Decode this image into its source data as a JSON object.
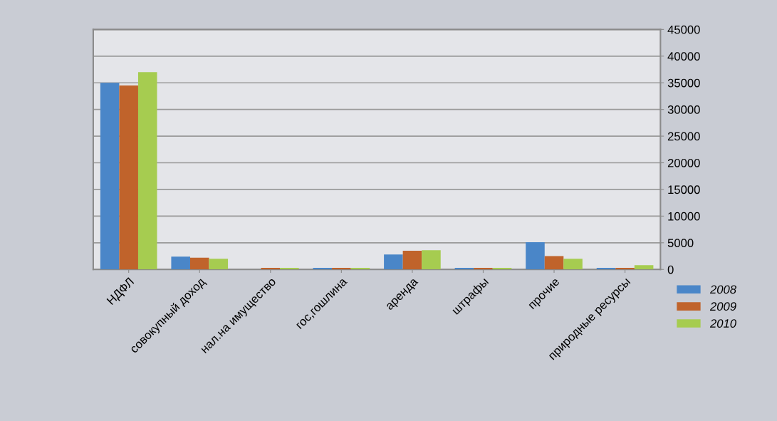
{
  "chart_data": {
    "type": "bar",
    "categories": [
      "НДФЛ",
      "совокупный доход",
      "нал.на имущество",
      "гос,гошлина",
      "аренда",
      "штрафы",
      "прочие",
      "природные ресурсы"
    ],
    "series": [
      {
        "name": "2008",
        "color": "#4a86c8",
        "values": [
          35000,
          2400,
          0,
          300,
          2800,
          300,
          5100,
          300
        ]
      },
      {
        "name": "2009",
        "color": "#c0632b",
        "values": [
          34500,
          2200,
          300,
          300,
          3500,
          300,
          2500,
          300
        ]
      },
      {
        "name": "2010",
        "color": "#a6cc50",
        "values": [
          37000,
          2000,
          300,
          300,
          3600,
          300,
          2000,
          800
        ]
      }
    ],
    "ylim": [
      0,
      45000
    ],
    "yticks": [
      0,
      5000,
      10000,
      15000,
      20000,
      25000,
      30000,
      35000,
      40000,
      45000
    ],
    "grid": "y",
    "legend": "bottom right"
  }
}
